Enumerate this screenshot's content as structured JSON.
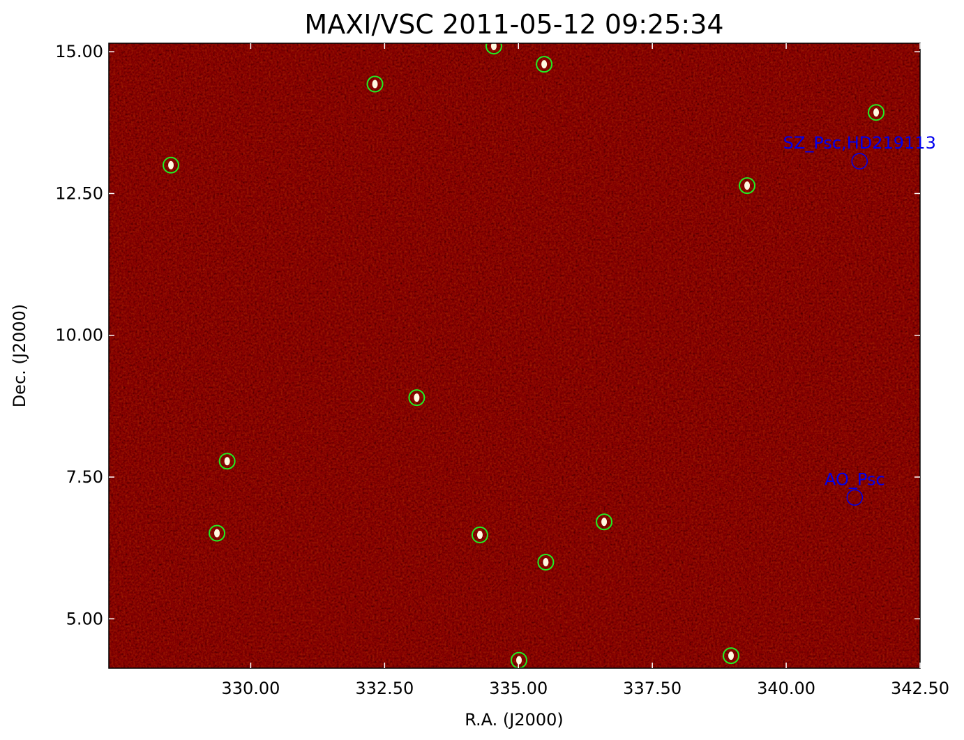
{
  "chart_data": {
    "type": "sky-image",
    "title": "MAXI/VSC 2011-05-12 09:25:34",
    "x_label": "R.A. (J2000)",
    "y_label": "Dec. (J2000)",
    "xlim": [
      327.35,
      342.5
    ],
    "ylim": [
      4.13,
      15.15
    ],
    "xticks": [
      {
        "value": 330,
        "label": "330.00"
      },
      {
        "value": 332.5,
        "label": "332.50"
      },
      {
        "value": 335,
        "label": "335.00"
      },
      {
        "value": 337.5,
        "label": "337.50"
      },
      {
        "value": 340,
        "label": "340.00"
      },
      {
        "value": 342.5,
        "label": "342.50"
      }
    ],
    "yticks": [
      {
        "value": 5,
        "label": "5.00"
      },
      {
        "value": 7.5,
        "label": "7.50"
      },
      {
        "value": 10,
        "label": "10.00"
      },
      {
        "value": 12.5,
        "label": "12.50"
      },
      {
        "value": 15,
        "label": "15.00"
      }
    ],
    "background": "#8a0000",
    "detections": {
      "color": "#22ee22",
      "x": [
        328.51,
        332.32,
        334.54,
        335.48,
        341.68,
        339.27,
        333.1,
        329.56,
        329.37,
        334.28,
        336.6,
        335.51,
        335.01,
        338.97
      ],
      "y": [
        13.0,
        14.43,
        15.1,
        14.78,
        13.93,
        12.64,
        8.9,
        7.78,
        6.51,
        6.48,
        6.71,
        6.0,
        4.27,
        4.35
      ]
    },
    "targets": [
      {
        "label": "SZ_Psc,HD219113",
        "x": 341.37,
        "y": 13.07,
        "color": "#0000ee"
      },
      {
        "label": "AO_Psc",
        "x": 341.28,
        "y": 7.14,
        "color": "#0000ee"
      }
    ]
  }
}
